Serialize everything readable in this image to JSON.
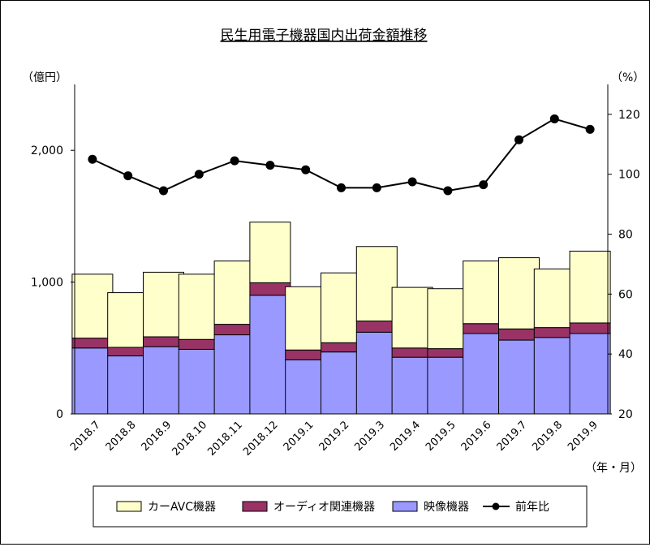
{
  "chart_data": {
    "type": "bar",
    "stacked": true,
    "title": "民生用電子機器国内出荷金額推移",
    "y_left_label": "（億円）",
    "y_right_label": "（%）",
    "x_unit_label": "（年・月）",
    "categories": [
      "2018.7",
      "2018.8",
      "2018.9",
      "2018.10",
      "2018.11",
      "2018.12",
      "2019.1",
      "2019.2",
      "2019.3",
      "2019.4",
      "2019.5",
      "2019.6",
      "2019.7",
      "2019.8",
      "2019.9"
    ],
    "y_left_range": [
      0,
      2500
    ],
    "y_left_ticks": [
      0,
      1000,
      2000
    ],
    "y_left_tick_labels": [
      "0",
      "1,000",
      "2,000"
    ],
    "y_right_range": [
      20,
      130
    ],
    "y_right_ticks": [
      20,
      40,
      60,
      80,
      100,
      120
    ],
    "y_right_tick_labels": [
      "20",
      "40",
      "60",
      "80",
      "100",
      "120"
    ],
    "grid": false,
    "legend_position": "bottom",
    "series": [
      {
        "name": "映像機器",
        "color": "#9999ff",
        "axis": "left",
        "values": [
          500,
          440,
          510,
          490,
          600,
          900,
          410,
          470,
          620,
          430,
          430,
          610,
          560,
          580,
          610
        ]
      },
      {
        "name": "オーディオ関連機器",
        "color": "#993366",
        "axis": "left",
        "values": [
          75,
          65,
          75,
          75,
          80,
          95,
          75,
          70,
          85,
          70,
          65,
          75,
          85,
          75,
          80
        ]
      },
      {
        "name": "カーAVC機器",
        "color": "#ffffcc",
        "axis": "left",
        "values": [
          485,
          415,
          490,
          495,
          480,
          460,
          480,
          530,
          565,
          460,
          455,
          475,
          540,
          445,
          545
        ]
      },
      {
        "name": "前年比",
        "color": "#000000",
        "axis": "right",
        "type": "line",
        "values": [
          105,
          99.5,
          94.5,
          100,
          104.5,
          103,
          101.5,
          95.5,
          95.5,
          97.5,
          94.5,
          96.5,
          111.5,
          118.5,
          115
        ]
      }
    ],
    "legend_order": [
      "カーAVC機器",
      "オーディオ関連機器",
      "映像機器",
      "前年比"
    ]
  }
}
